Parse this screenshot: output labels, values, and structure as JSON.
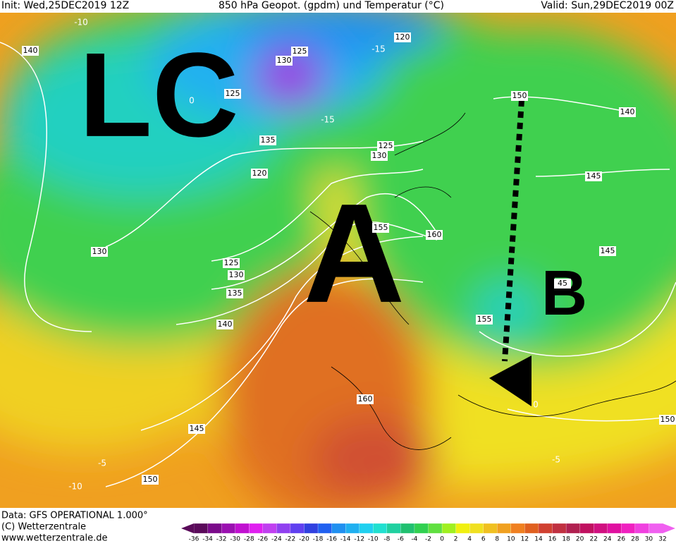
{
  "header": {
    "init": "Init: Wed,25DEC2019 12Z",
    "title": "850 hPa Geopot. (gpdm) und Temperatur (°C)",
    "valid": "Valid: Sun,29DEC2019 00Z"
  },
  "annotations": {
    "lc": "LC",
    "a": "A",
    "b": "B"
  },
  "geopotential_labels": [
    140,
    125,
    130,
    120,
    150,
    140,
    125,
    135,
    125,
    130,
    120,
    145,
    155,
    160,
    130,
    145,
    125,
    130,
    135,
    45,
    140,
    155,
    160,
    145,
    150,
    150
  ],
  "temperature_labels": [
    -10,
    -15,
    -15,
    0,
    -5,
    -10,
    -5,
    0
  ],
  "footer": {
    "data": "Data: GFS OPERATIONAL 1.000°",
    "copyright": "(C) Wetterzentrale",
    "url": "www.wetterzentrale.de"
  },
  "colorbar": {
    "ticks": [
      -36,
      -34,
      -32,
      -30,
      -28,
      -26,
      -24,
      -22,
      -20,
      -18,
      -16,
      -14,
      -12,
      -10,
      -8,
      -6,
      -4,
      -2,
      0,
      2,
      4,
      6,
      8,
      10,
      12,
      14,
      16,
      18,
      20,
      22,
      24,
      26,
      28,
      30,
      32
    ],
    "colors": [
      "#5a0a5a",
      "#7a0a8a",
      "#9a10b0",
      "#c010d0",
      "#e020f0",
      "#c040f0",
      "#9040f0",
      "#6040f0",
      "#3040e0",
      "#2060f0",
      "#2090f0",
      "#20b0f0",
      "#20d0f0",
      "#20e0d0",
      "#20d0a0",
      "#20c070",
      "#30d050",
      "#60e040",
      "#a0f020",
      "#f0f010",
      "#f0e020",
      "#f0c020",
      "#f0a020",
      "#f08020",
      "#e06020",
      "#d04030",
      "#c03040",
      "#b02050",
      "#c01060",
      "#d01080",
      "#e010a0",
      "#f020c0",
      "#f040e0",
      "#f060f0"
    ]
  }
}
